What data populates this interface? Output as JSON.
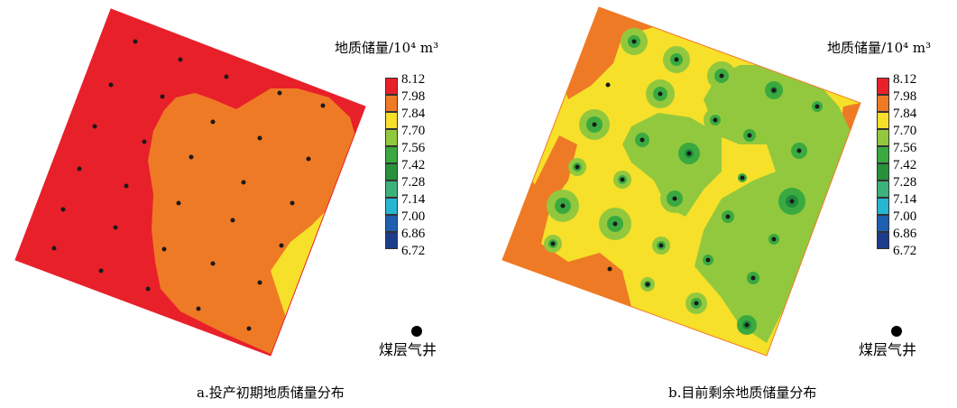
{
  "maps": [
    {
      "id": "a",
      "caption": "a.投产初期地质储量分布",
      "legend_title": "地质储量/10⁴ m³",
      "well_label": "煤层气井",
      "zones": [
        "red",
        "orange",
        "yellow"
      ],
      "well_count": 28
    },
    {
      "id": "b",
      "caption": "b.目前剩余地质储量分布",
      "legend_title": "地质储量/10⁴ m³",
      "well_label": "煤层气井",
      "zones": [
        "orange",
        "yellow",
        "light-green",
        "green"
      ],
      "well_count": 28
    }
  ],
  "legend": {
    "values": [
      "8.12",
      "7.98",
      "7.84",
      "7.70",
      "7.56",
      "7.42",
      "7.28",
      "7.14",
      "7.00",
      "6.86",
      "6.72"
    ],
    "colors": [
      "#e8202a",
      "#ef7a25",
      "#f6e02a",
      "#92c83e",
      "#3aaa40",
      "#27923b",
      "#3cb27a",
      "#27b6d0",
      "#1e5fb0",
      "#1e3c8c"
    ]
  },
  "colors": {
    "red": "#e8202a",
    "orange": "#ef7a25",
    "yellow": "#f6e02a",
    "light_green": "#92c83e",
    "green": "#3aaa40",
    "dark_green": "#1e8a3a",
    "well": "#1a1a1a"
  }
}
